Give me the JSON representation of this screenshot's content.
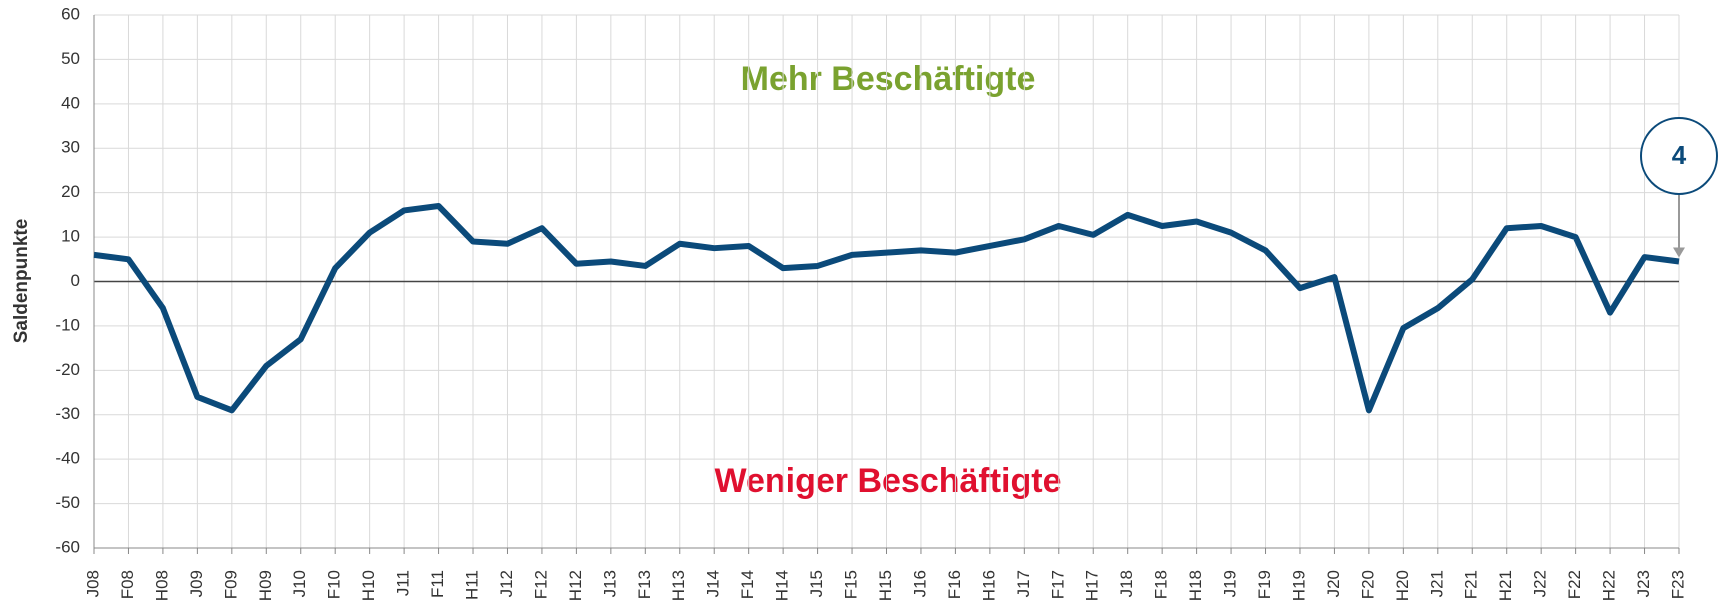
{
  "chart_data": {
    "type": "line",
    "ylabel": "Saldenpunkte",
    "annotations": [
      "Mehr Beschäftigte",
      "Weniger Beschäftigte",
      "4"
    ],
    "categories": [
      "J08",
      "F08",
      "H08",
      "J09",
      "F09",
      "H09",
      "J10",
      "F10",
      "H10",
      "J11",
      "F11",
      "H11",
      "J12",
      "F12",
      "H12",
      "J13",
      "F13",
      "H13",
      "J14",
      "F14",
      "H14",
      "J15",
      "F15",
      "H15",
      "J16",
      "F16",
      "H16",
      "J17",
      "F17",
      "H17",
      "J18",
      "F18",
      "H18",
      "J19",
      "F19",
      "H19",
      "J20",
      "F20",
      "H20",
      "J21",
      "F21",
      "H21",
      "J22",
      "F22",
      "H22",
      "J23",
      "F23"
    ],
    "series": [
      {
        "color": "#0b4a7a",
        "values": [
          6,
          5,
          -6,
          -26,
          -29,
          -19,
          -13,
          3,
          11,
          16,
          17,
          9,
          8.5,
          12,
          4,
          4.5,
          3.5,
          8.5,
          7.5,
          8,
          3,
          3.5,
          6,
          6.5,
          7,
          6.5,
          8,
          9.5,
          12.5,
          10.5,
          15,
          12.5,
          13.5,
          11,
          7,
          -1.5,
          1,
          -29,
          -10.5,
          -6,
          0.5,
          12,
          12.5,
          10,
          -7,
          5.5,
          4.5
        ]
      }
    ],
    "ylim": [
      -60,
      60
    ],
    "yticks": [
      -60,
      -50,
      -40,
      -30,
      -20,
      -10,
      0,
      10,
      20,
      30,
      40,
      50,
      60
    ],
    "grid": true
  }
}
